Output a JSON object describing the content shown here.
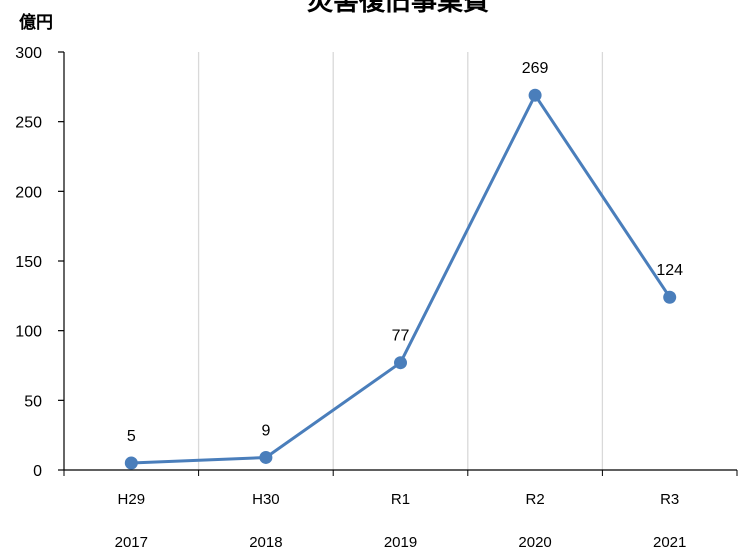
{
  "colors": {
    "line": "#4a7ebb",
    "marker": "#4a7ebb",
    "grid": "#d9d9d9",
    "axis": "#000000"
  },
  "chart_data": {
    "type": "line",
    "title": "災害復旧事業費",
    "ylabel": "億円",
    "xlabel": "",
    "categories": [
      "H29",
      "H30",
      "R1",
      "R2",
      "R3"
    ],
    "categories_year": [
      "2017",
      "2018",
      "2019",
      "2020",
      "2021"
    ],
    "values": [
      5,
      9,
      77,
      269,
      124
    ],
    "ylim": [
      0,
      300
    ],
    "y_ticks": [
      0,
      50,
      100,
      150,
      200,
      250,
      300
    ],
    "grid": {
      "vertical": true,
      "horizontal": false
    },
    "data_labels": true
  }
}
